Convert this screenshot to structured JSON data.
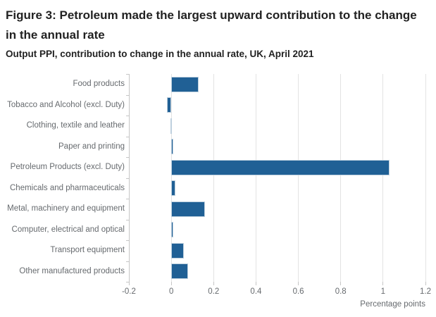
{
  "figure": {
    "title": "Figure 3: Petroleum made the largest upward contribution to the change in the annual rate",
    "subtitle": "Output PPI, contribution to change in the annual rate, UK, April 2021"
  },
  "chart_data": {
    "type": "bar",
    "orientation": "horizontal",
    "title": "Figure 3: Petroleum made the largest upward contribution to the change in the annual rate",
    "subtitle": "Output PPI, contribution to change in the annual rate, UK, April 2021",
    "categories": [
      "Food products",
      "Tobacco and Alcohol (excl. Duty)",
      "Clothing, textile and leather",
      "Paper and printing",
      "Petroleum Products (excl. Duty)",
      "Chemicals and pharmaceuticals",
      "Metal, machinery and equipment",
      "Computer, electrical and optical",
      "Transport equipment",
      "Other manufactured products"
    ],
    "values": [
      0.13,
      -0.02,
      0.0,
      0.01,
      1.03,
      0.02,
      0.16,
      0.01,
      0.06,
      0.08
    ],
    "xlabel": "Percentage points",
    "ylabel": "",
    "xlim": [
      -0.2,
      1.2
    ],
    "xticks": [
      -0.2,
      0,
      0.2,
      0.4,
      0.6,
      0.8,
      1,
      1.2
    ],
    "xtick_labels": [
      "-0.2",
      "0",
      "0.2",
      "0.4",
      "0.6",
      "0.8",
      "1",
      "1.2"
    ],
    "grid": true,
    "legend": false,
    "colors": {
      "bar_fill": "#206095",
      "bar_border": "#bed0de",
      "gridline": "#e3e3e3",
      "axis": "#c6c6c6",
      "tick_text": "#666a6e",
      "title_text": "#222222"
    }
  }
}
